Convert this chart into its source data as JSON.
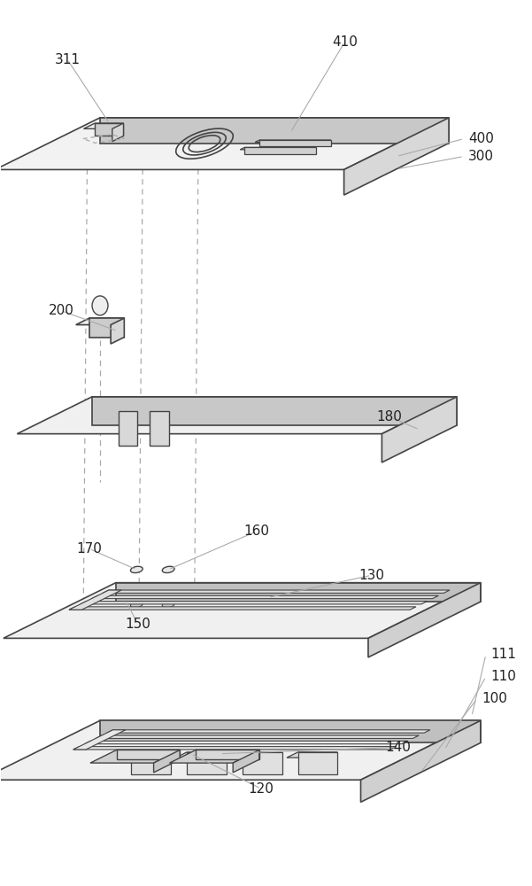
{
  "bg_color": "#ffffff",
  "line_color": "#444444",
  "dashed_color": "#aaaaaa",
  "label_color": "#222222",
  "figsize": [
    6.01,
    10.0
  ],
  "dpi": 100
}
